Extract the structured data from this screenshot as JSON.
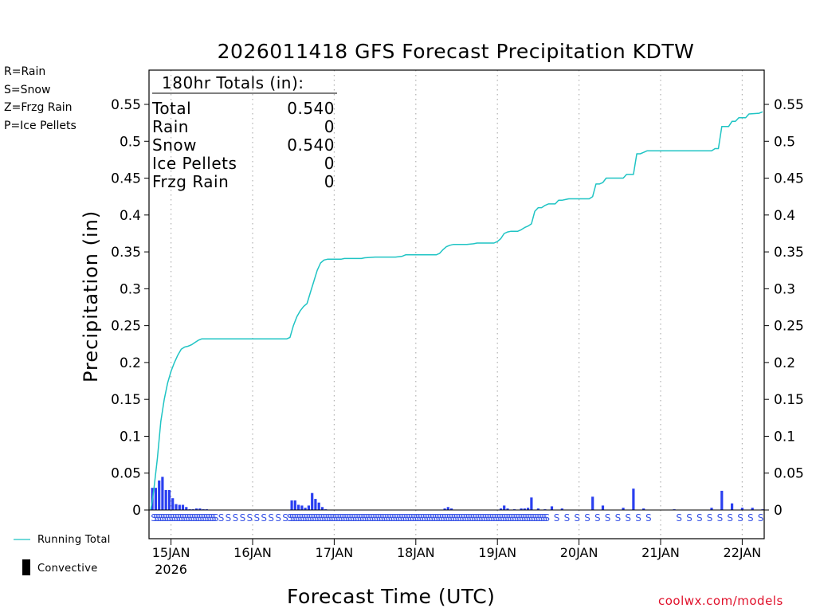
{
  "title": "2026011418 GFS Forecast Precipitation KDTW",
  "precip_legend": [
    {
      "label": "R=Rain",
      "color": "#22cc22"
    },
    {
      "label": "S=Snow",
      "color": "#3a55e6"
    },
    {
      "label": "Z=Frzg Rain",
      "color": "#f28a3a"
    },
    {
      "label": "P=Ice Pellets",
      "color": "#e0179a"
    }
  ],
  "totals_box": {
    "header": "180hr Totals (in):",
    "rows": [
      {
        "label": "Total",
        "value": "0.540"
      },
      {
        "label": "Rain",
        "value": "0"
      },
      {
        "label": "Snow",
        "value": "0.540"
      },
      {
        "label": "Ice Pellets",
        "value": "0"
      },
      {
        "label": "Frzg Rain",
        "value": "0"
      }
    ]
  },
  "bottom_legend": {
    "running_total": "Running Total",
    "convective": "Convective"
  },
  "credit": "coolwx.com/models",
  "colors": {
    "running_total": "#1fc4c4",
    "snow_bar": "#2a3ff0",
    "convective_bar": "#000000",
    "grid": "#b0b0b0"
  },
  "chart_data": {
    "type": "bar+line",
    "title": "2026011418 GFS Forecast Precipitation KDTW",
    "xlabel": "Forecast Time (UTC)",
    "ylabel": "Precipitation (in)",
    "ylim": [
      -0.038,
      0.59
    ],
    "yticks": [
      0,
      0.05,
      0.1,
      0.15,
      0.2,
      0.25,
      0.3,
      0.35,
      0.4,
      0.45,
      0.5,
      0.55
    ],
    "ytick_labels": [
      "0",
      "0.05",
      "0.1",
      "0.15",
      "0.2",
      "0.25",
      "0.3",
      "0.35",
      "0.4",
      "0.45",
      "0.5",
      "0.55"
    ],
    "xlim_hours": [
      0,
      180
    ],
    "x_ticks": [
      {
        "hour": 6,
        "label": "15JAN",
        "sublabel": "2026"
      },
      {
        "hour": 30,
        "label": "16JAN"
      },
      {
        "hour": 54,
        "label": "17JAN"
      },
      {
        "hour": 78,
        "label": "18JAN"
      },
      {
        "hour": 102,
        "label": "19JAN"
      },
      {
        "hour": 126,
        "label": "20JAN"
      },
      {
        "hour": 150,
        "label": "21JAN"
      },
      {
        "hour": 174,
        "label": "22JAN"
      }
    ],
    "grid": "vertical dotted at day boundaries",
    "series": [
      {
        "name": "Running Total",
        "type": "line",
        "points": [
          [
            0,
            0
          ],
          [
            0.5,
            0.012
          ],
          [
            1,
            0.03
          ],
          [
            2,
            0.07
          ],
          [
            3,
            0.12
          ],
          [
            4,
            0.15
          ],
          [
            5,
            0.172
          ],
          [
            6,
            0.188
          ],
          [
            7,
            0.2
          ],
          [
            8,
            0.21
          ],
          [
            9,
            0.218
          ],
          [
            10,
            0.221
          ],
          [
            11,
            0.222
          ],
          [
            12,
            0.224
          ],
          [
            13,
            0.227
          ],
          [
            14,
            0.23
          ],
          [
            15,
            0.232
          ],
          [
            17,
            0.232
          ],
          [
            24,
            0.232
          ],
          [
            30,
            0.232
          ],
          [
            36,
            0.232
          ],
          [
            40,
            0.232
          ],
          [
            41,
            0.234
          ],
          [
            42,
            0.25
          ],
          [
            43,
            0.262
          ],
          [
            44,
            0.27
          ],
          [
            45,
            0.276
          ],
          [
            46,
            0.28
          ],
          [
            47,
            0.295
          ],
          [
            48,
            0.31
          ],
          [
            49,
            0.325
          ],
          [
            50,
            0.335
          ],
          [
            51,
            0.339
          ],
          [
            52,
            0.34
          ],
          [
            56,
            0.34
          ],
          [
            57,
            0.341
          ],
          [
            62,
            0.341
          ],
          [
            63,
            0.342
          ],
          [
            66,
            0.343
          ],
          [
            72,
            0.343
          ],
          [
            74,
            0.344
          ],
          [
            75,
            0.346
          ],
          [
            84,
            0.346
          ],
          [
            85,
            0.348
          ],
          [
            86,
            0.353
          ],
          [
            87,
            0.357
          ],
          [
            88,
            0.359
          ],
          [
            89,
            0.36
          ],
          [
            93,
            0.36
          ],
          [
            95,
            0.361
          ],
          [
            96,
            0.362
          ],
          [
            101,
            0.362
          ],
          [
            102,
            0.364
          ],
          [
            103,
            0.368
          ],
          [
            104,
            0.375
          ],
          [
            105,
            0.377
          ],
          [
            106,
            0.378
          ],
          [
            108,
            0.378
          ],
          [
            109,
            0.38
          ],
          [
            110,
            0.383
          ],
          [
            111,
            0.385
          ],
          [
            112,
            0.388
          ],
          [
            113,
            0.405
          ],
          [
            114,
            0.41
          ],
          [
            115,
            0.41
          ],
          [
            116,
            0.413
          ],
          [
            117,
            0.415
          ],
          [
            119,
            0.415
          ],
          [
            120,
            0.42
          ],
          [
            121,
            0.42
          ],
          [
            122,
            0.421
          ],
          [
            123,
            0.422
          ],
          [
            124,
            0.422
          ],
          [
            129,
            0.422
          ],
          [
            130,
            0.425
          ],
          [
            131,
            0.442
          ],
          [
            132,
            0.442
          ],
          [
            133,
            0.444
          ],
          [
            134,
            0.45
          ],
          [
            139,
            0.45
          ],
          [
            140,
            0.455
          ],
          [
            142,
            0.455
          ],
          [
            143,
            0.483
          ],
          [
            144,
            0.483
          ],
          [
            145,
            0.485
          ],
          [
            146,
            0.487
          ],
          [
            159,
            0.487
          ],
          [
            165,
            0.487
          ],
          [
            166,
            0.49
          ],
          [
            167,
            0.49
          ],
          [
            168,
            0.52
          ],
          [
            170,
            0.52
          ],
          [
            171,
            0.527
          ],
          [
            172,
            0.527
          ],
          [
            173,
            0.532
          ],
          [
            175,
            0.532
          ],
          [
            176,
            0.537
          ],
          [
            179,
            0.538
          ],
          [
            180,
            0.54
          ]
        ]
      },
      {
        "name": "Snow",
        "type": "bar",
        "points": [
          [
            0.5,
            0.03
          ],
          [
            1.5,
            0.03
          ],
          [
            2.5,
            0.04
          ],
          [
            3.5,
            0.045
          ],
          [
            4.5,
            0.027
          ],
          [
            5.5,
            0.027
          ],
          [
            6.5,
            0.016
          ],
          [
            7.5,
            0.008
          ],
          [
            8.5,
            0.007
          ],
          [
            9.5,
            0.007
          ],
          [
            10.5,
            0.004
          ],
          [
            11.5,
            0.001
          ],
          [
            12.5,
            0.001
          ],
          [
            13.5,
            0.002
          ],
          [
            14.5,
            0.002
          ],
          [
            15.5,
            0.001
          ],
          [
            16.5,
            0.001
          ],
          [
            17.5,
            0.0005
          ],
          [
            41.5,
            0.013
          ],
          [
            42.5,
            0.013
          ],
          [
            43.5,
            0.007
          ],
          [
            44.5,
            0.006
          ],
          [
            45.5,
            0.003
          ],
          [
            46.5,
            0.006
          ],
          [
            47.5,
            0.023
          ],
          [
            48.5,
            0.015
          ],
          [
            49.5,
            0.01
          ],
          [
            50.5,
            0.004
          ],
          [
            51.5,
            0.001
          ],
          [
            52.5,
            0.0005
          ],
          [
            86.5,
            0.002
          ],
          [
            87.5,
            0.004
          ],
          [
            88.5,
            0.002
          ],
          [
            103,
            0.002
          ],
          [
            104,
            0.006
          ],
          [
            105,
            0.002
          ],
          [
            107,
            0.001
          ],
          [
            109,
            0.002
          ],
          [
            110,
            0.002
          ],
          [
            111,
            0.003
          ],
          [
            112,
            0.017
          ],
          [
            114,
            0.002
          ],
          [
            116,
            0.001
          ],
          [
            118,
            0.005
          ],
          [
            121,
            0.002
          ],
          [
            124,
            0.0005
          ],
          [
            130,
            0.018
          ],
          [
            133,
            0.006
          ],
          [
            139,
            0.003
          ],
          [
            142,
            0.029
          ],
          [
            145,
            0.002
          ],
          [
            154,
            0.001
          ],
          [
            165,
            0.003
          ],
          [
            168,
            0.026
          ],
          [
            171,
            0.009
          ],
          [
            174,
            0.003
          ],
          [
            177,
            0.003
          ],
          [
            180,
            0.001
          ]
        ]
      }
    ],
    "ptype_markers": {
      "symbol": "S",
      "hours": [
        0,
        0.7,
        1.4,
        2.1,
        2.8,
        3.5,
        4.2,
        4.9,
        5.6,
        6.3,
        7,
        7.7,
        8.4,
        9.1,
        9.8,
        10.5,
        11.2,
        11.9,
        12.6,
        13.3,
        14,
        14.7,
        15.4,
        16.1,
        16.8,
        17.5,
        18.2,
        19.8,
        21.9,
        24,
        26.1,
        28.2,
        30.3,
        32.4,
        34.5,
        36.6,
        38.7,
        40,
        40.7,
        41.4,
        42.1,
        42.8,
        43.5,
        44.2,
        44.9,
        45.6,
        46.3,
        47,
        47.7,
        48.4,
        49.1,
        49.8,
        50.5,
        51.2,
        51.9,
        52.6,
        53.3,
        54,
        54.7,
        55.4,
        56.1,
        56.8,
        57.5,
        58.2,
        58.9,
        59.6,
        60.3,
        61,
        61.7,
        62.4,
        63.1,
        63.8,
        64.5,
        65.2,
        65.9,
        66.6,
        67.3,
        68,
        68.7,
        69.4,
        70.1,
        70.8,
        71.5,
        72.2,
        72.9,
        73.6,
        74.3,
        75,
        75.7,
        76.4,
        77.1,
        77.8,
        78.5,
        79.2,
        79.9,
        80.6,
        81.3,
        82,
        82.7,
        83.4,
        84.1,
        84.8,
        85.5,
        86.2,
        86.9,
        87.6,
        88.3,
        89,
        89.7,
        90.4,
        91.1,
        91.8,
        92.5,
        93.2,
        93.9,
        94.6,
        95.3,
        96,
        96.7,
        97.4,
        98.1,
        98.8,
        99.5,
        100.2,
        100.9,
        101.6,
        102.3,
        103,
        103.7,
        104.4,
        105.1,
        105.8,
        106.5,
        107.2,
        107.9,
        108.6,
        109.3,
        110,
        110.7,
        111.4,
        112.1,
        112.8,
        113.5,
        114.2,
        114.9,
        115.6,
        118.5,
        121.5,
        124.5,
        127.5,
        130.5,
        133.5,
        136.5,
        139.5,
        142.5,
        145.5,
        154.5,
        157.5,
        160.5,
        163.5,
        166.5,
        169.5,
        172.5,
        175.5,
        178.5
      ]
    },
    "annotations": [
      "R=Rain",
      "S=Snow",
      "Z=Frzg Rain",
      "P=Ice Pellets"
    ]
  }
}
